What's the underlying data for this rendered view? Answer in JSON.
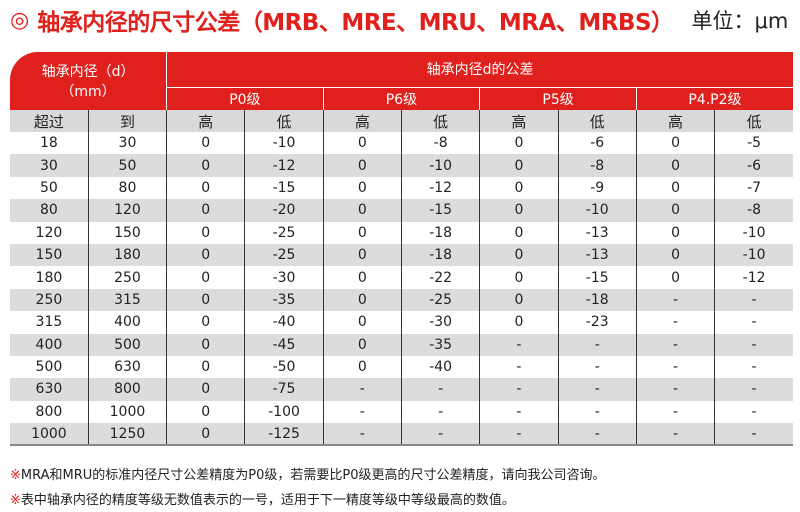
{
  "title": {
    "symbol": "◎",
    "text": "轴承内径的尺寸公差（MRB、MRE、MRU、MRA、MRBS）",
    "unit": "单位：μm"
  },
  "colors": {
    "accent": "#e0201c",
    "stripe": "#dcdcdc"
  },
  "header": {
    "bore": "轴承内径（d）",
    "bore_unit": "（mm）",
    "tolerance": "轴承内径d的公差",
    "grades": [
      "P0级",
      "P6级",
      "P5级",
      "P4.P2级"
    ],
    "over": "超过",
    "to": "到",
    "high": "高",
    "low": "低"
  },
  "rows": [
    [
      "18",
      "30",
      "0",
      "-10",
      "0",
      "-8",
      "0",
      "-6",
      "0",
      "-5"
    ],
    [
      "30",
      "50",
      "0",
      "-12",
      "0",
      "-10",
      "0",
      "-8",
      "0",
      "-6"
    ],
    [
      "50",
      "80",
      "0",
      "-15",
      "0",
      "-12",
      "0",
      "-9",
      "0",
      "-7"
    ],
    [
      "80",
      "120",
      "0",
      "-20",
      "0",
      "-15",
      "0",
      "-10",
      "0",
      "-8"
    ],
    [
      "120",
      "150",
      "0",
      "-25",
      "0",
      "-18",
      "0",
      "-13",
      "0",
      "-10"
    ],
    [
      "150",
      "180",
      "0",
      "-25",
      "0",
      "-18",
      "0",
      "-13",
      "0",
      "-10"
    ],
    [
      "180",
      "250",
      "0",
      "-30",
      "0",
      "-22",
      "0",
      "-15",
      "0",
      "-12"
    ],
    [
      "250",
      "315",
      "0",
      "-35",
      "0",
      "-25",
      "0",
      "-18",
      "-",
      "-"
    ],
    [
      "315",
      "400",
      "0",
      "-40",
      "0",
      "-30",
      "0",
      "-23",
      "-",
      "-"
    ],
    [
      "400",
      "500",
      "0",
      "-45",
      "0",
      "-35",
      "-",
      "-",
      "-",
      "-"
    ],
    [
      "500",
      "630",
      "0",
      "-50",
      "0",
      "-40",
      "-",
      "-",
      "-",
      "-"
    ],
    [
      "630",
      "800",
      "0",
      "-75",
      "-",
      "-",
      "-",
      "-",
      "-",
      "-"
    ],
    [
      "800",
      "1000",
      "0",
      "-100",
      "-",
      "-",
      "-",
      "-",
      "-",
      "-"
    ],
    [
      "1000",
      "1250",
      "0",
      "-125",
      "-",
      "-",
      "-",
      "-",
      "-",
      "-"
    ]
  ],
  "notes": [
    {
      "mark": "※",
      "text": "MRA和MRU的标准内径尺寸公差精度为P0级，若需要比P0级更高的尺寸公差精度，请向我公司咨询。"
    },
    {
      "mark": "※",
      "text": "表中轴承内径的精度等级无数值表示的一号，适用于下一精度等级中等级最高的数值。"
    }
  ]
}
